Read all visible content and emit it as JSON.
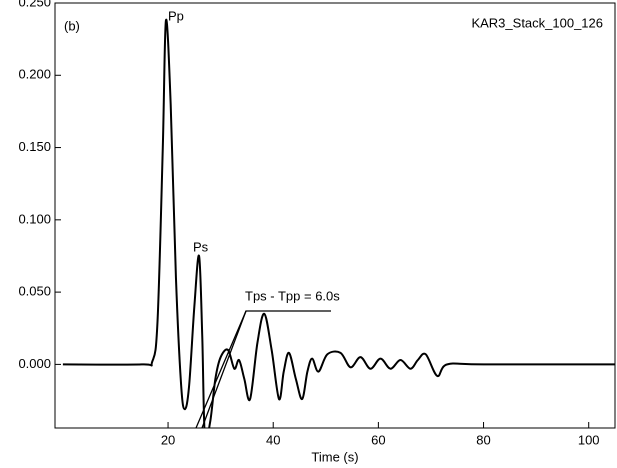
{
  "chart_data": {
    "type": "line",
    "x_label": "Time (s)",
    "panel_label": "(b)",
    "annotations": [
      "Pp",
      "Ps",
      "Tps - Tpp = 6.0s"
    ],
    "xlim": [
      -1.5,
      105
    ],
    "ylim": [
      -0.044,
      0.25
    ],
    "xticks": [
      20,
      40,
      60,
      80,
      100
    ],
    "yticks": [
      {
        "value": 0,
        "label": "0.000"
      },
      {
        "value": 0.05,
        "label": "0.050"
      },
      {
        "value": 0.1,
        "label": "0.100"
      },
      {
        "value": 0.15,
        "label": "0.150"
      },
      {
        "value": 0.2,
        "label": "0.200"
      },
      {
        "value": 0.25,
        "label": "0.250"
      }
    ],
    "x": [
      0,
      15,
      17,
      18,
      19,
      19.6,
      20.5,
      21.5,
      22.5,
      23.2,
      24,
      25,
      25.9,
      26.5,
      27,
      28,
      29,
      30,
      31.4,
      32.6,
      33.5,
      34.5,
      35.6,
      37,
      38.3,
      39.7,
      41.1,
      42,
      43,
      44.3,
      45.5,
      46.5,
      47.4,
      48.6,
      50.3,
      52.8,
      54.7,
      56.6,
      58.5,
      60.4,
      62.3,
      64.2,
      66.1,
      67.5,
      69,
      71.2,
      73.1,
      80,
      105
    ],
    "series": [
      {
        "name": "KAR3_Stack_100_126",
        "color": "#000000",
        "values": [
          0,
          0,
          0.002,
          0.03,
          0.15,
          0.238,
          0.18,
          0.06,
          -0.015,
          -0.031,
          -0.015,
          0.04,
          0.075,
          0.02,
          -0.05,
          -0.04,
          -0.01,
          0.005,
          0.01,
          -0.003,
          0.003,
          -0.01,
          -0.024,
          0.015,
          0.035,
          0.01,
          -0.024,
          -0.005,
          0.008,
          -0.01,
          -0.024,
          -0.005,
          0.004,
          -0.005,
          0.007,
          0.008,
          -0.002,
          0.005,
          -0.003,
          0.004,
          -0.003,
          0.003,
          -0.003,
          0.003,
          0.007,
          -0.008,
          0,
          0,
          0
        ]
      }
    ]
  }
}
